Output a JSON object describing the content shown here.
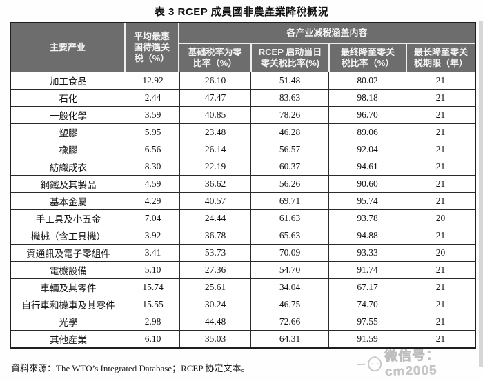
{
  "title": "表 3  RCEP 成員國非農產業降稅概況",
  "table": {
    "headers": {
      "industry": "主要产业",
      "mfn_avg_tariff": "平均最惠\n国待遇关\n税（%）",
      "group": "各产业减税涵盖内容",
      "base_rate_zero": "基础税率为零\n比率（%）",
      "day_one_zero": "RCEP 启动当日\n零关税比率(%)",
      "final_zero": "最终降至零关\n税比率（%）",
      "max_years": "最长降至零关\n税期限（年）"
    },
    "rows": [
      {
        "industry": "加工食品",
        "mfn_avg_tariff": "12.92",
        "base_rate_zero": "26.10",
        "day_one_zero": "51.48",
        "final_zero": "80.02",
        "max_years": "21"
      },
      {
        "industry": "石化",
        "mfn_avg_tariff": "2.44",
        "base_rate_zero": "47.47",
        "day_one_zero": "83.63",
        "final_zero": "98.18",
        "max_years": "21"
      },
      {
        "industry": "一般化學",
        "mfn_avg_tariff": "3.59",
        "base_rate_zero": "40.85",
        "day_one_zero": "78.26",
        "final_zero": "96.70",
        "max_years": "21"
      },
      {
        "industry": "塑膠",
        "mfn_avg_tariff": "5.95",
        "base_rate_zero": "23.48",
        "day_one_zero": "46.28",
        "final_zero": "89.06",
        "max_years": "21"
      },
      {
        "industry": "橡膠",
        "mfn_avg_tariff": "6.56",
        "base_rate_zero": "26.14",
        "day_one_zero": "56.57",
        "final_zero": "92.04",
        "max_years": "21"
      },
      {
        "industry": "紡織成衣",
        "mfn_avg_tariff": "8.30",
        "base_rate_zero": "22.19",
        "day_one_zero": "60.37",
        "final_zero": "94.61",
        "max_years": "21"
      },
      {
        "industry": "鋼鐵及其製品",
        "mfn_avg_tariff": "4.59",
        "base_rate_zero": "36.62",
        "day_one_zero": "56.26",
        "final_zero": "90.60",
        "max_years": "21"
      },
      {
        "industry": "基本金屬",
        "mfn_avg_tariff": "4.29",
        "base_rate_zero": "40.57",
        "day_one_zero": "69.71",
        "final_zero": "95.74",
        "max_years": "21"
      },
      {
        "industry": "手工具及小五金",
        "mfn_avg_tariff": "7.04",
        "base_rate_zero": "24.44",
        "day_one_zero": "61.63",
        "final_zero": "93.78",
        "max_years": "20"
      },
      {
        "industry": "機械（含工具機）",
        "mfn_avg_tariff": "3.92",
        "base_rate_zero": "36.78",
        "day_one_zero": "65.63",
        "final_zero": "94.88",
        "max_years": "21"
      },
      {
        "industry": "資通訊及電子零組件",
        "mfn_avg_tariff": "3.41",
        "base_rate_zero": "53.73",
        "day_one_zero": "70.09",
        "final_zero": "93.33",
        "max_years": "20"
      },
      {
        "industry": "電機設備",
        "mfn_avg_tariff": "5.10",
        "base_rate_zero": "27.36",
        "day_one_zero": "54.70",
        "final_zero": "91.74",
        "max_years": "21"
      },
      {
        "industry": "車輛及其零件",
        "mfn_avg_tariff": "15.74",
        "base_rate_zero": "25.61",
        "day_one_zero": "34.04",
        "final_zero": "67.17",
        "max_years": "21"
      },
      {
        "industry": "自行車和機車及其零件",
        "mfn_avg_tariff": "15.55",
        "base_rate_zero": "30.24",
        "day_one_zero": "46.75",
        "final_zero": "74.70",
        "max_years": "21"
      },
      {
        "industry": "光學",
        "mfn_avg_tariff": "2.98",
        "base_rate_zero": "44.48",
        "day_one_zero": "72.66",
        "final_zero": "97.55",
        "max_years": "21"
      },
      {
        "industry": "其他産業",
        "mfn_avg_tariff": "6.10",
        "base_rate_zero": "35.03",
        "day_one_zero": "64.31",
        "final_zero": "91.59",
        "max_years": "21"
      }
    ]
  },
  "footer": {
    "source_note": "資料來源：The WTO’s Integrated Database；RCEP 协定文本。"
  },
  "watermark": {
    "label": "微信号：cm2005",
    "icon": "wechat-account-badge-icon",
    "icon_glyph": "⋯"
  },
  "colors": {
    "header_bg": "#6d6d6d",
    "header_text": "#f4f4f4",
    "border_dark": "#1f1f1f",
    "watermark_gray": "#c9c9c9"
  }
}
